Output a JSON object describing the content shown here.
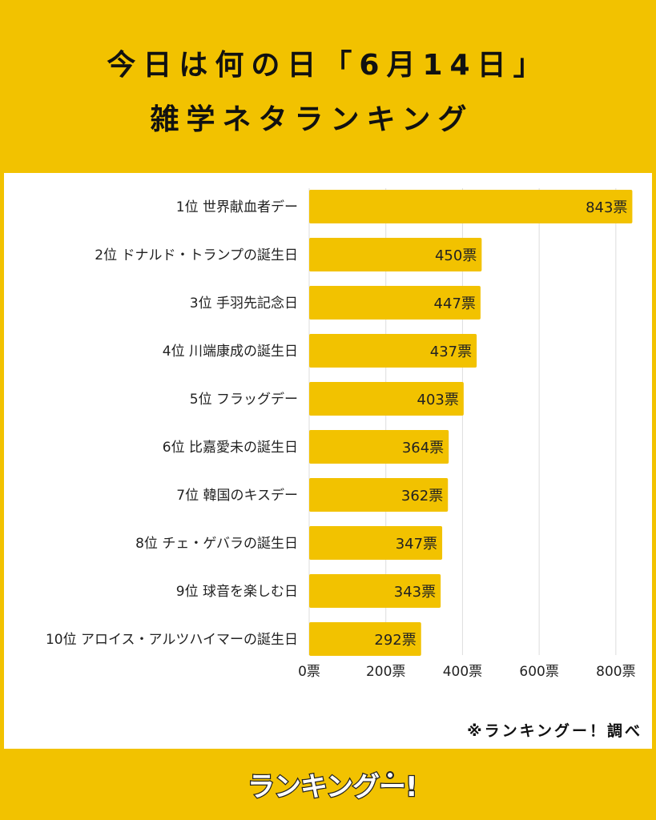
{
  "header": {
    "title_line1": "今日は何の日「6月14日」",
    "title_line2": "雑学ネタランキング"
  },
  "chart_data": {
    "type": "bar",
    "orientation": "horizontal",
    "categories": [
      "1位 世界献血者デー",
      "2位 ドナルド・トランプの誕生日",
      "3位 手羽先記念日",
      "4位 川端康成の誕生日",
      "5位 フラッグデー",
      "6位 比嘉愛未の誕生日",
      "7位 韓国のキスデー",
      "8位 チェ・ゲバラの誕生日",
      "9位 球音を楽しむ日",
      "10位 アロイス・アルツハイマーの誕生日"
    ],
    "values": [
      843,
      450,
      447,
      437,
      403,
      364,
      362,
      347,
      343,
      292
    ],
    "value_labels": [
      "843票",
      "450票",
      "447票",
      "437票",
      "403票",
      "364票",
      "362票",
      "347票",
      "343票",
      "292票"
    ],
    "xlim": [
      0,
      840
    ],
    "xticks": [
      0,
      200,
      400,
      600,
      800
    ],
    "xtick_labels": [
      "0票",
      "200票",
      "400票",
      "600票",
      "800票"
    ],
    "grid": true,
    "bar_color": "#F2C200"
  },
  "source_note": "※ランキングー！調べ",
  "logo_text": "ランキングー!",
  "colors": {
    "background": "#F2C200",
    "panel": "#FFFFFF",
    "text": "#111111",
    "gridline": "#DDDDDD"
  }
}
